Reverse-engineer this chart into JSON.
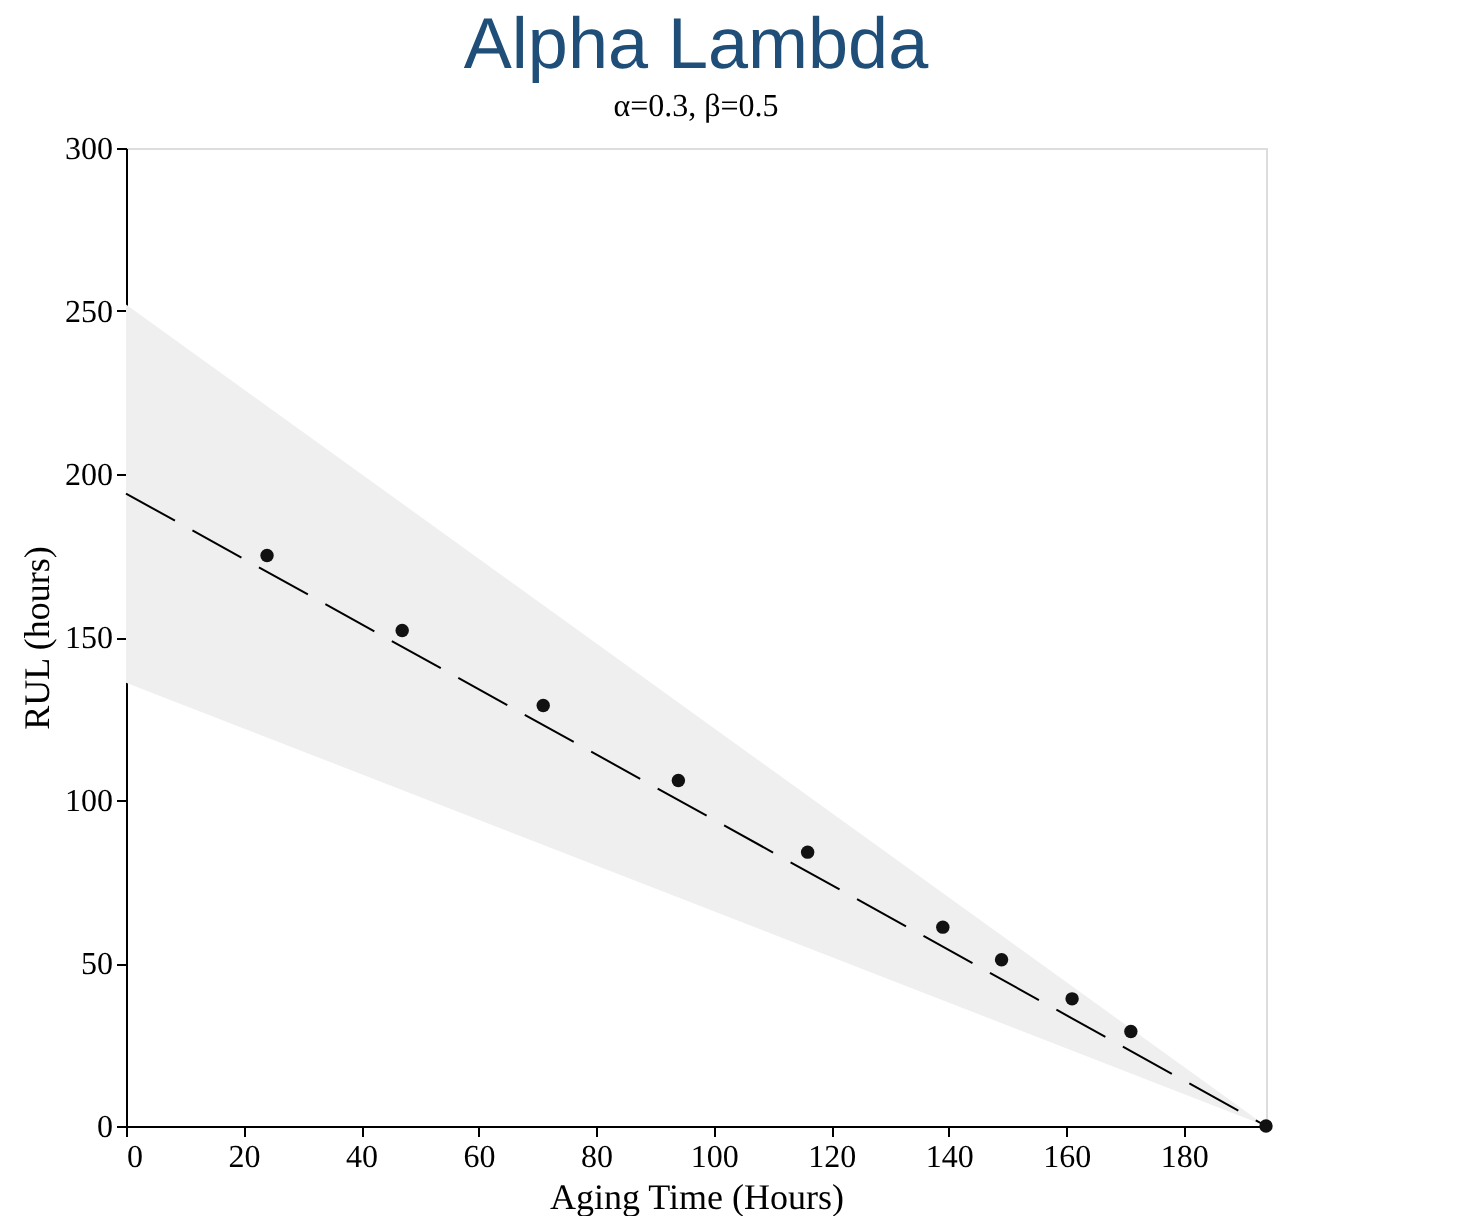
{
  "chart_data": {
    "type": "scatter",
    "title": "Alpha Lambda",
    "subtitle": "α=0.3, β=0.5",
    "xlabel": "Aging Time (Hours)",
    "ylabel": "RUL (hours)",
    "xlim": [
      0,
      194
    ],
    "xticks": [
      0,
      20,
      40,
      60,
      80,
      100,
      120,
      140,
      160,
      180
    ],
    "ylim": [
      0,
      300
    ],
    "yticks": [
      0,
      50,
      100,
      150,
      200,
      250,
      300
    ],
    "grid": false,
    "series": [
      {
        "type": "line",
        "color": "#000000",
        "line_style": "dashed",
        "marker": "none",
        "x": [
          0,
          194
        ],
        "values": [
          194,
          0
        ],
        "lower": [
          136,
          0
        ],
        "upper": [
          252,
          0
        ]
      },
      {
        "color": "#111111",
        "marker": "circle",
        "x": [
          24,
          47,
          71,
          94,
          116,
          139,
          149,
          161,
          171,
          194
        ],
        "values": [
          175,
          152,
          129,
          106,
          84,
          61,
          51,
          39,
          29,
          0
        ]
      }
    ]
  }
}
